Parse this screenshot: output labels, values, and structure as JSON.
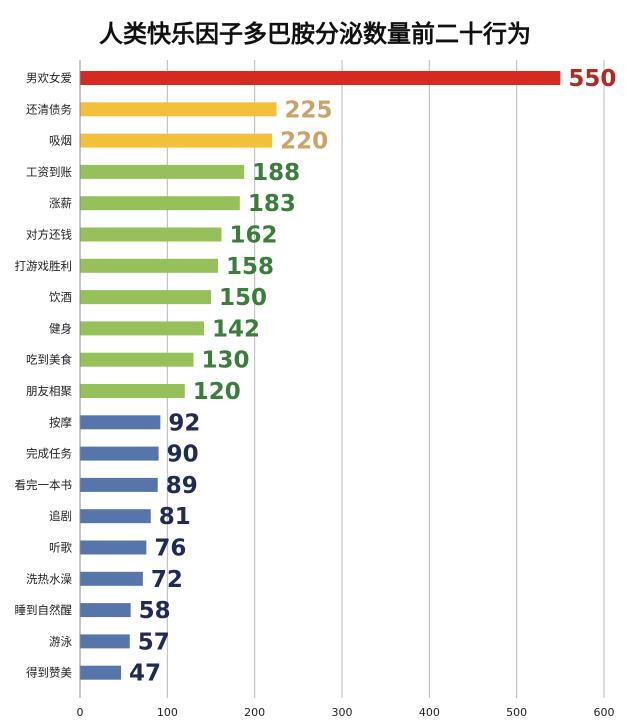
{
  "chart_data": {
    "type": "bar",
    "orientation": "horizontal",
    "title": "人类快乐因子多巴胺分泌数量前二十行为",
    "xlim": [
      0,
      600
    ],
    "x_ticks": [
      0,
      100,
      200,
      300,
      400,
      500,
      600
    ],
    "grid": true,
    "legend": "none",
    "categories": [
      "男欢女爱",
      "还清债务",
      "吸烟",
      "工资到账",
      "涨薪",
      "对方还钱",
      "打游戏胜利",
      "饮酒",
      "健身",
      "吃到美食",
      "朋友相聚",
      "按摩",
      "完成任务",
      "看完一本书",
      "追剧",
      "听歌",
      "洗热水澡",
      "睡到自然醒",
      "游泳",
      "得到赞美"
    ],
    "values": [
      550,
      225,
      220,
      188,
      183,
      162,
      158,
      150,
      142,
      130,
      120,
      92,
      90,
      89,
      81,
      76,
      72,
      58,
      57,
      47
    ],
    "bar_colors": [
      "#d42a22",
      "#f2c03a",
      "#f2c03a",
      "#96c15a",
      "#96c15a",
      "#96c15a",
      "#96c15a",
      "#96c15a",
      "#96c15a",
      "#96c15a",
      "#96c15a",
      "#5676ab",
      "#5676ab",
      "#5676ab",
      "#5676ab",
      "#5676ab",
      "#5676ab",
      "#5676ab",
      "#5676ab",
      "#5676ab"
    ],
    "label_colors": [
      "#b32820",
      "#c9a466",
      "#c9a466",
      "#3b7d3a",
      "#3b7d3a",
      "#3b7d3a",
      "#3b7d3a",
      "#3b7d3a",
      "#3b7d3a",
      "#3b7d3a",
      "#3b7d3a",
      "#1f2a55",
      "#1f2a55",
      "#1f2a55",
      "#1f2a55",
      "#1f2a55",
      "#1f2a55",
      "#1f2a55",
      "#1f2a55",
      "#1f2a55"
    ]
  }
}
